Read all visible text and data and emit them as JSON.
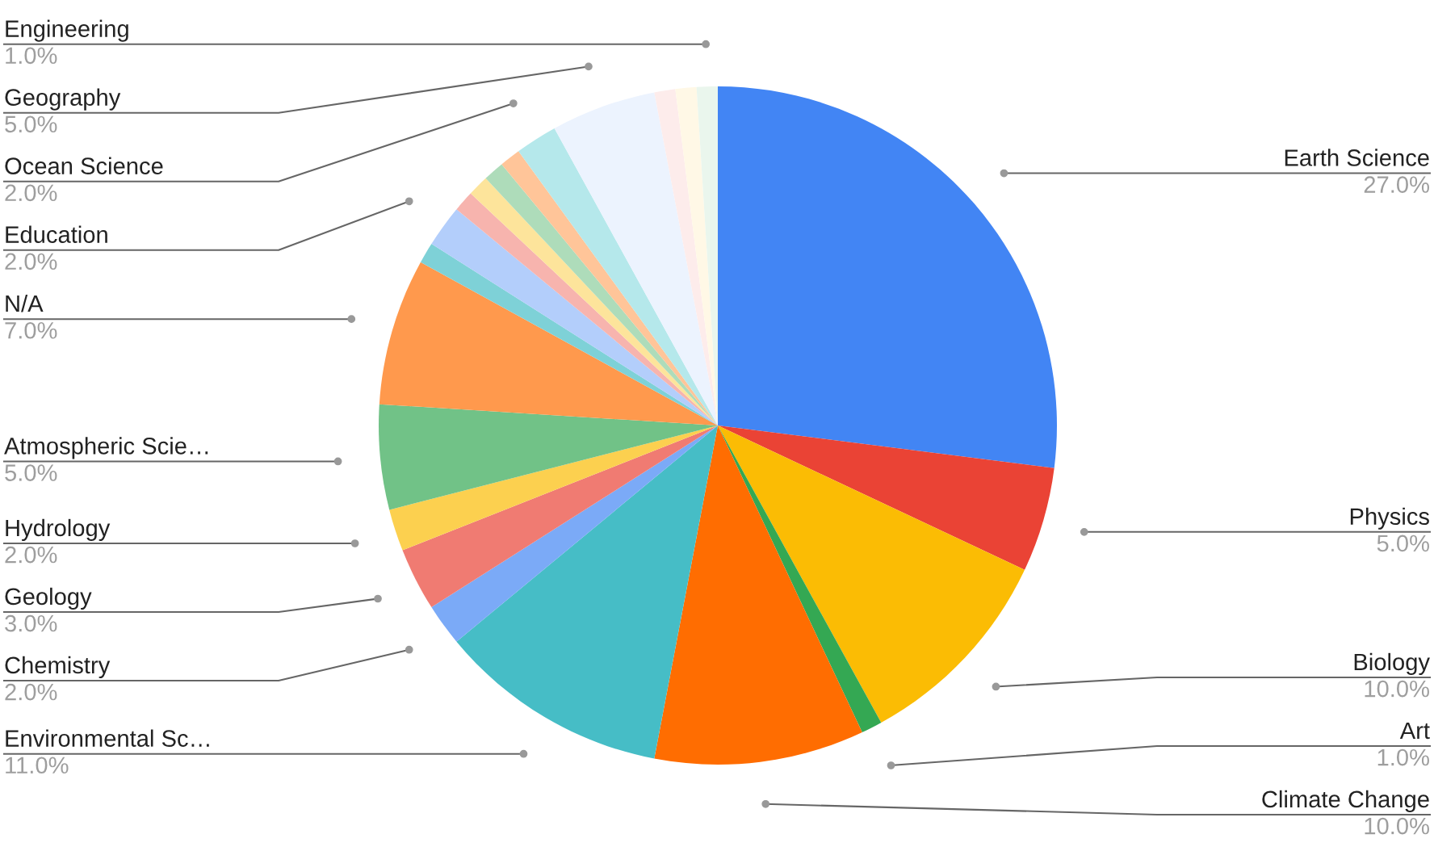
{
  "chart_data": {
    "type": "pie",
    "categories": [
      "Earth Science",
      "Physics",
      "Biology",
      "Art",
      "Climate Change",
      "Environmental Sc…",
      "Chemistry",
      "Geology",
      "Hydrology",
      "Atmospheric Scie…",
      "N/A",
      null,
      "Education",
      null,
      null,
      null,
      null,
      "Ocean Science",
      "Geography",
      null,
      null,
      "Engineering"
    ],
    "values": [
      27,
      5,
      10,
      1,
      10,
      11,
      2,
      3,
      2,
      5,
      7,
      1,
      2,
      1,
      1,
      1,
      1,
      2,
      5,
      1,
      1,
      1
    ],
    "value_labels": [
      "27.0%",
      "5.0%",
      "10.0%",
      "1.0%",
      "10.0%",
      "11.0%",
      "2.0%",
      "3.0%",
      "2.0%",
      "5.0%",
      "7.0%",
      null,
      "2.0%",
      null,
      null,
      null,
      null,
      "2.0%",
      "5.0%",
      null,
      null,
      "1.0%"
    ],
    "colors": [
      "#4285f4",
      "#ea4335",
      "#fbbc04",
      "#34a853",
      "#ff6d01",
      "#46bdc6",
      "#7baaf7",
      "#f07b72",
      "#fcd04f",
      "#71c287",
      "#ff994d",
      "#7ed1d7",
      "#b3cefb",
      "#f7b4ae",
      "#fde49b",
      "#aedcba",
      "#ffc599",
      "#b5e8eb",
      "#ecf3fe",
      "#fdeceb",
      "#fff8e6",
      "#eaf6ed"
    ],
    "legend": false
  }
}
